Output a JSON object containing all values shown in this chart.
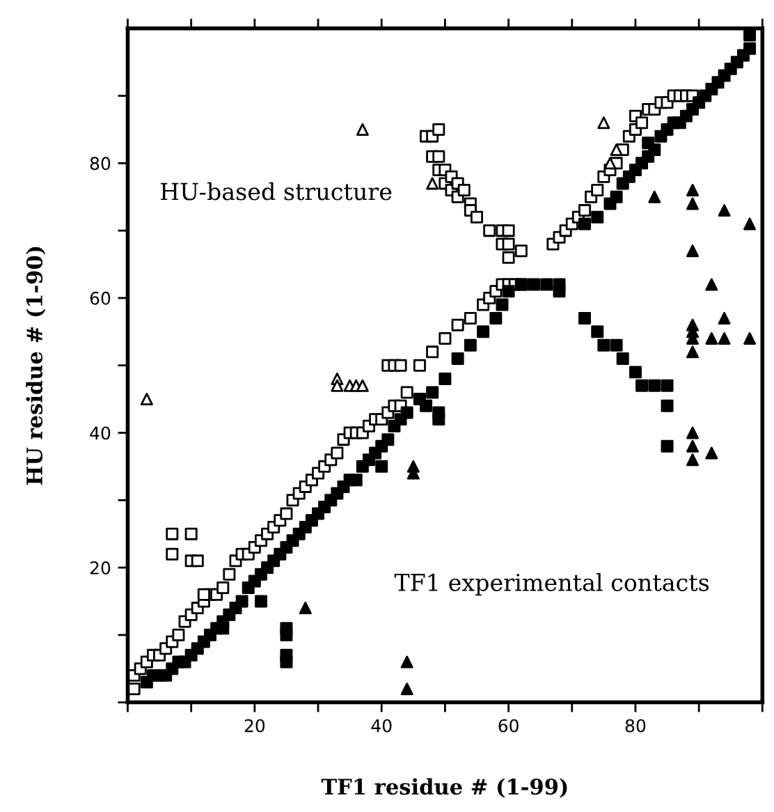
{
  "chart_data": {
    "type": "scatter",
    "xlabel": "TF1 residue # (1-99)",
    "ylabel": "HU residue # (1-90)",
    "annotations": [
      "HU-based structure",
      "TF1 experimental contacts"
    ],
    "xlim": [
      0,
      100
    ],
    "ylim": [
      0,
      100
    ],
    "xticks": [
      {
        "value": 0,
        "label": null
      },
      {
        "value": 10,
        "label": null
      },
      20,
      {
        "value": 30,
        "label": null
      },
      40,
      {
        "value": 50,
        "label": null
      },
      60,
      {
        "value": 70,
        "label": null
      },
      80,
      {
        "value": 90,
        "label": null
      },
      {
        "value": 100,
        "label": null
      }
    ],
    "yticks": [
      {
        "value": 0,
        "label": null
      },
      {
        "value": 10,
        "label": null
      },
      20,
      {
        "value": 30,
        "label": null
      },
      40,
      {
        "value": 50,
        "label": null
      },
      60,
      {
        "value": 70,
        "label": null
      },
      80,
      {
        "value": 90,
        "label": null
      }
    ],
    "grid": false,
    "legend": false,
    "series": [
      {
        "color": "#000000",
        "marker": "square",
        "x": [
          1,
          1,
          2,
          3,
          4,
          5,
          6,
          7,
          8,
          9,
          10,
          11,
          12,
          13,
          14,
          15,
          16,
          17,
          18,
          19,
          20,
          21,
          22,
          23,
          24,
          25,
          26,
          27,
          28,
          29,
          30,
          31,
          32,
          33,
          34,
          35,
          36,
          37,
          38,
          39,
          40,
          41,
          42,
          43,
          44,
          46,
          48,
          50,
          52,
          54,
          56,
          57,
          58,
          59,
          60,
          61,
          62,
          7,
          7,
          10,
          10,
          11,
          12,
          41,
          42,
          43,
          67,
          68,
          69,
          70,
          71,
          72,
          73,
          74,
          75,
          76,
          77,
          78,
          79,
          80,
          80,
          81,
          82,
          83,
          84,
          85,
          86,
          87,
          88,
          89,
          47,
          48,
          49,
          48,
          49,
          49,
          50,
          50,
          51,
          51,
          52,
          52,
          53,
          54,
          54,
          55,
          57,
          59,
          60,
          59,
          60,
          60,
          62
        ],
        "values": [
          2,
          4,
          5,
          6,
          7,
          7,
          8,
          9,
          10,
          12,
          13,
          14,
          15,
          16,
          16,
          17,
          19,
          21,
          22,
          22,
          23,
          24,
          25,
          26,
          27,
          28,
          30,
          31,
          32,
          33,
          34,
          35,
          36,
          37,
          39,
          40,
          40,
          40,
          41,
          42,
          42,
          43,
          44,
          44,
          46,
          50,
          52,
          54,
          56,
          57,
          59,
          60,
          61,
          62,
          62,
          62,
          62,
          25,
          22,
          25,
          21,
          21,
          16,
          50,
          50,
          50,
          68,
          69,
          70,
          71,
          72,
          73,
          75,
          76,
          78,
          79,
          80,
          82,
          84,
          85,
          87,
          86,
          88,
          88,
          89,
          89,
          90,
          90,
          90,
          90,
          84,
          84,
          85,
          81,
          81,
          79,
          79,
          77,
          78,
          76,
          77,
          75,
          76,
          74,
          73,
          72,
          70,
          70,
          70,
          68,
          68,
          66,
          67
        ]
      },
      {
        "color": "#000000",
        "marker": "square",
        "x": [
          3,
          4,
          5,
          6,
          7,
          8,
          9,
          10,
          11,
          12,
          13,
          14,
          15,
          16,
          17,
          18,
          19,
          20,
          21,
          22,
          23,
          24,
          25,
          26,
          27,
          28,
          29,
          30,
          31,
          32,
          33,
          34,
          35,
          36,
          37,
          38,
          39,
          40,
          41,
          42,
          43,
          44,
          46,
          48,
          50,
          52,
          54,
          56,
          58,
          59,
          60,
          62,
          64,
          66,
          68,
          68,
          15,
          21,
          25,
          25,
          25,
          25,
          40,
          47,
          49,
          49,
          72,
          74,
          75,
          77,
          78,
          80,
          81,
          83,
          85,
          85,
          85,
          72,
          74,
          76,
          77,
          78,
          79,
          80,
          81,
          82,
          82,
          83,
          84,
          85,
          86,
          87,
          88,
          89,
          90,
          91,
          92,
          93,
          94,
          95,
          96,
          97,
          98,
          98
        ],
        "values": [
          3,
          4,
          4,
          4,
          5,
          6,
          6,
          7,
          8,
          9,
          10,
          11,
          12,
          13,
          14,
          15,
          17,
          18,
          19,
          20,
          21,
          22,
          23,
          24,
          25,
          26,
          27,
          28,
          29,
          30,
          31,
          32,
          33,
          33,
          35,
          36,
          37,
          38,
          39,
          41,
          42,
          43,
          45,
          46,
          48,
          51,
          53,
          55,
          57,
          59,
          61,
          62,
          62,
          62,
          62,
          61,
          11,
          15,
          11,
          10,
          7,
          6,
          35,
          44,
          43,
          42,
          57,
          55,
          53,
          53,
          51,
          49,
          47,
          47,
          47,
          44,
          38,
          71,
          72,
          74,
          75,
          77,
          78,
          79,
          80,
          81,
          83,
          82,
          84,
          85,
          86,
          86,
          87,
          88,
          89,
          90,
          91,
          92,
          93,
          94,
          95,
          96,
          97,
          99
        ]
      },
      {
        "color": "#000000",
        "marker": "triangle",
        "x": [
          3,
          37,
          33,
          33,
          35,
          36,
          37,
          48,
          75,
          77,
          76
        ],
        "values": [
          45,
          85,
          48,
          47,
          47,
          47,
          47,
          77,
          86,
          82,
          80
        ]
      },
      {
        "color": "#000000",
        "marker": "triangle",
        "x": [
          83,
          89,
          89,
          94,
          98,
          89,
          92,
          89,
          89,
          89,
          89,
          92,
          94,
          94,
          98,
          89,
          89,
          89,
          92,
          45,
          45,
          44,
          44,
          28
        ],
        "values": [
          75,
          76,
          74,
          73,
          71,
          67,
          62,
          56,
          55,
          54,
          52,
          54,
          57,
          54,
          54,
          40,
          38,
          36,
          37,
          35,
          34,
          6,
          2,
          14
        ]
      }
    ]
  }
}
